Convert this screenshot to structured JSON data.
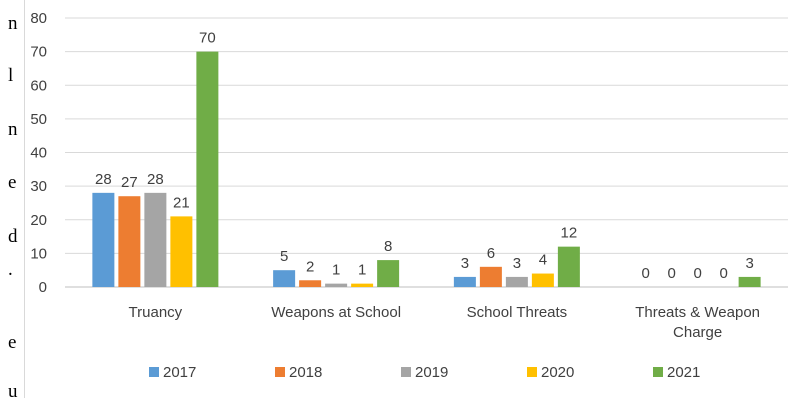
{
  "document_edge": [
    "n",
    "l",
    "n",
    "e",
    "d",
    ".",
    "e",
    "u"
  ],
  "chart_data": {
    "type": "bar",
    "title": "",
    "xlabel": "",
    "ylabel": "",
    "ylim": [
      0,
      80
    ],
    "yticks": [
      "0",
      "10",
      "20",
      "30",
      "40",
      "50",
      "60",
      "70",
      "80"
    ],
    "grid": true,
    "legend_position": "bottom",
    "categories": [
      [
        "Truancy"
      ],
      [
        "Weapons at School"
      ],
      [
        "School Threats"
      ],
      [
        "Threats & Weapon",
        "Charge"
      ]
    ],
    "series": [
      {
        "name": "2017",
        "color": "#5b9bd5",
        "values": [
          28,
          5,
          3,
          0
        ]
      },
      {
        "name": "2018",
        "color": "#ed7d31",
        "values": [
          27,
          2,
          6,
          0
        ]
      },
      {
        "name": "2019",
        "color": "#a5a5a5",
        "values": [
          28,
          1,
          3,
          0
        ]
      },
      {
        "name": "2020",
        "color": "#ffc000",
        "values": [
          21,
          1,
          4,
          0
        ]
      },
      {
        "name": "2021",
        "color": "#70ad47",
        "values": [
          70,
          8,
          12,
          3
        ]
      }
    ]
  }
}
